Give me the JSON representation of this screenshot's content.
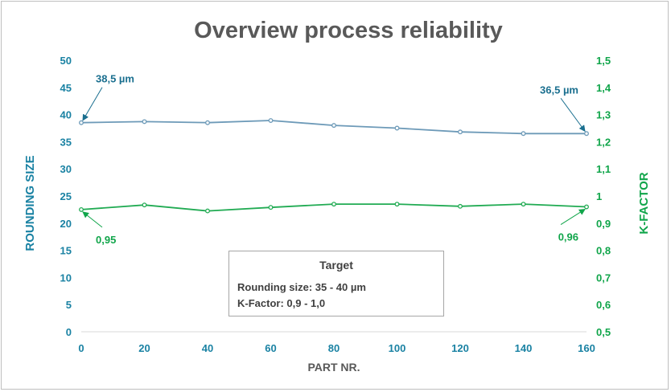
{
  "chart_data": {
    "type": "line",
    "title": "Overview process reliability",
    "xlabel": "PART NR.",
    "ylabel_left": "ROUNDING SIZE",
    "ylabel_right": "K-FACTOR",
    "x": [
      0,
      20,
      40,
      60,
      80,
      100,
      120,
      140,
      160
    ],
    "x_ticks": [
      "0",
      "20",
      "40",
      "60",
      "80",
      "100",
      "120",
      "140",
      "160"
    ],
    "xlim": [
      0,
      160
    ],
    "ylim_left": [
      0,
      50
    ],
    "ylim_right": [
      0.5,
      1.5
    ],
    "y_ticks_left": [
      "0",
      "5",
      "10",
      "15",
      "20",
      "25",
      "30",
      "35",
      "40",
      "45",
      "50"
    ],
    "y_ticks_right": [
      "0,5",
      "0,6",
      "0,7",
      "0,8",
      "0,9",
      "1",
      "1,1",
      "1,2",
      "1,3",
      "1,4",
      "1,5"
    ],
    "grid": false,
    "series": [
      {
        "axis": "left",
        "color": "#6d9ab8",
        "values": [
          38.5,
          38.7,
          38.5,
          38.9,
          38.0,
          37.5,
          36.8,
          36.5,
          36.5
        ]
      },
      {
        "axis": "right",
        "color": "#21ab53",
        "values": [
          0.95,
          0.967,
          0.945,
          0.958,
          0.97,
          0.97,
          0.962,
          0.97,
          0.96
        ]
      }
    ],
    "annotations": [
      {
        "text": "38,5 µm",
        "series": 0,
        "point": 0
      },
      {
        "text": "36,5 µm",
        "series": 0,
        "point": 8
      },
      {
        "text": "0,95",
        "series": 1,
        "point": 0
      },
      {
        "text": "0,96",
        "series": 1,
        "point": 8
      }
    ]
  },
  "target_box": {
    "title": "Target",
    "line1": "Rounding size: 35 - 40 µm",
    "line2": "K-Factor: 0,9 - 1,0"
  }
}
